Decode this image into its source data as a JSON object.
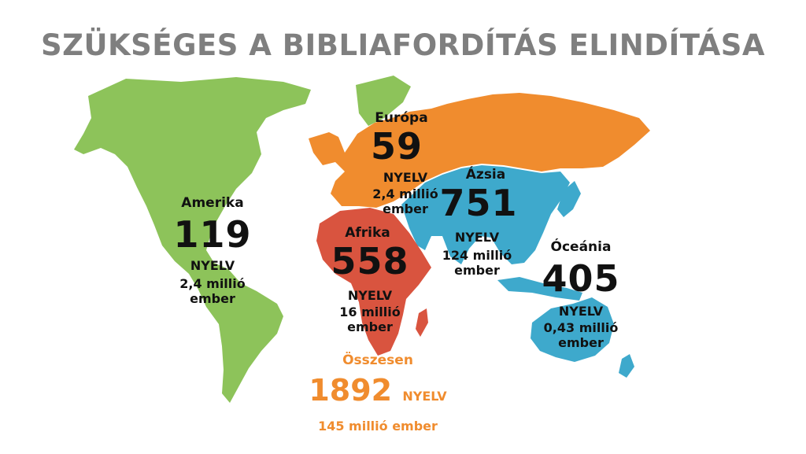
{
  "title": "SZÜKSÉGES A BIBLIAFORDÍTÁS ELINDÍTÁSA",
  "colors": {
    "title": "#7f7f7f",
    "amerika": "#8dc35a",
    "europa": "#f08c2e",
    "afrika": "#d9543f",
    "azsia": "#3ea9cc",
    "oceania": "#3ea9cc",
    "total": "#f08c2e"
  },
  "regions": {
    "amerika": {
      "name": "Amerika",
      "number": "119",
      "unit": "NYELV",
      "people_line1": "2,4 millió",
      "people_line2": "ember"
    },
    "europa": {
      "name": "Európa",
      "number": "59",
      "unit": "NYELV",
      "people_line1": "2,4 millió",
      "people_line2": "ember"
    },
    "afrika": {
      "name": "Afrika",
      "number": "558",
      "unit": "NYELV",
      "people_line1": "16 millió",
      "people_line2": "ember"
    },
    "azsia": {
      "name": "Ázsia",
      "number": "751",
      "unit": "NYELV",
      "people_line1": "124 millió",
      "people_line2": "ember"
    },
    "oceania": {
      "name": "Óceánia",
      "number": "405",
      "unit": "NYELV",
      "people_line1": "0,43 millió",
      "people_line2": "ember"
    }
  },
  "total": {
    "label": "Összesen",
    "number": "1892",
    "unit": "NYELV",
    "people": "145 millió ember"
  }
}
